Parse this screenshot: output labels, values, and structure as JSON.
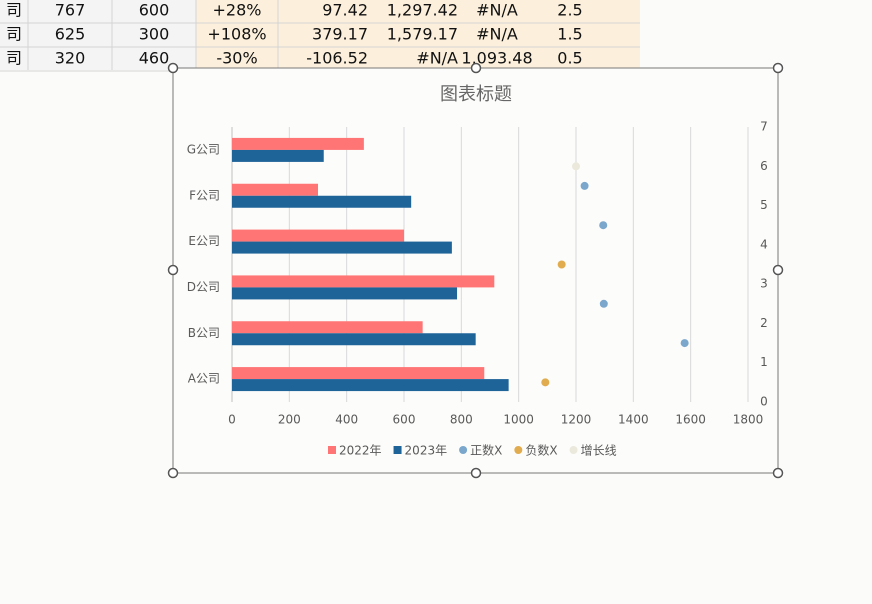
{
  "spreadsheet": {
    "rows": [
      [
        "司",
        "767",
        "600",
        "+28%",
        "97.42",
        "1,297.42",
        "#N/A",
        "2.5"
      ],
      [
        "司",
        "625",
        "300",
        "+108%",
        "379.17",
        "1,579.17",
        "#N/A",
        "1.5"
      ],
      [
        "司",
        "320",
        "460",
        "-30%",
        "-106.52",
        "#N/A",
        "1,093.48",
        "0.5"
      ]
    ]
  },
  "chart_data": {
    "type": "bar",
    "title": "图表标题",
    "orientation": "horizontal",
    "categories": [
      "A公司",
      "B公司",
      "D公司",
      "E公司",
      "F公司",
      "G公司"
    ],
    "series": [
      {
        "name": "2022年",
        "type": "bar",
        "color": "#ff7575",
        "values": [
          880,
          665,
          915,
          600,
          300,
          460
        ]
      },
      {
        "name": "2023年",
        "type": "bar",
        "color": "#1f6499",
        "values": [
          965,
          850,
          785,
          767,
          625,
          320
        ]
      },
      {
        "name": "正数X",
        "type": "scatter",
        "axis": "y2",
        "color": "#7ba7cc",
        "x": [
          1230,
          1295,
          1297,
          1579
        ],
        "values": [
          5.5,
          4.5,
          2.5,
          1.5
        ]
      },
      {
        "name": "负数X",
        "type": "scatter",
        "axis": "y2",
        "color": "#e0ac4e",
        "x": [
          1150,
          1093
        ],
        "values": [
          3.5,
          0.5
        ]
      },
      {
        "name": "增长线",
        "type": "scatter",
        "axis": "y2",
        "color": "#ebe8dc",
        "x": [
          1200
        ],
        "values": [
          6
        ]
      }
    ],
    "xlim": [
      0,
      1800
    ],
    "xticks": [
      0,
      200,
      400,
      600,
      800,
      1000,
      1200,
      1400,
      1600,
      1800
    ],
    "y2lim": [
      0,
      7
    ],
    "y2ticks": [
      0,
      1,
      2,
      3,
      4,
      5,
      6,
      7
    ],
    "grid": true,
    "legend": "bottom"
  }
}
